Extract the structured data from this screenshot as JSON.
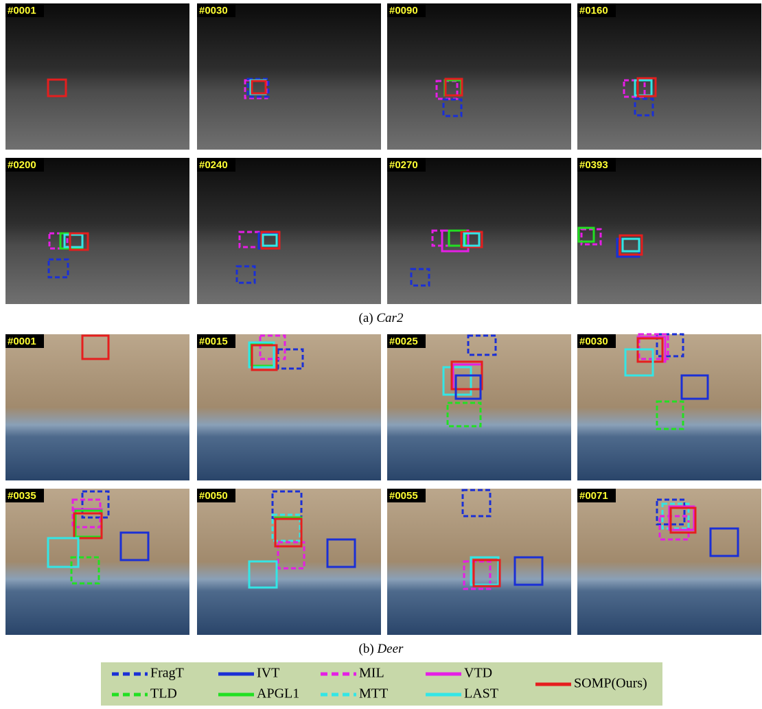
{
  "panels": [
    {
      "caption_label": "(a)",
      "caption_name": "Car2",
      "frames": [
        "#0001",
        "#0030",
        "#0090",
        "#0160",
        "#0200",
        "#0240",
        "#0270",
        "#0393"
      ]
    },
    {
      "caption_label": "(b)",
      "caption_name": "Deer",
      "frames": [
        "#0001",
        "#0015",
        "#0025",
        "#0030",
        "#0035",
        "#0050",
        "#0055",
        "#0071"
      ]
    }
  ],
  "legend": [
    {
      "name": "FragT",
      "color": "#1a2fd6",
      "dashed": true
    },
    {
      "name": "TLD",
      "color": "#22e022",
      "dashed": true
    },
    {
      "name": "IVT",
      "color": "#1a2fd6",
      "dashed": false
    },
    {
      "name": "APGL1",
      "color": "#22e022",
      "dashed": false
    },
    {
      "name": "MIL",
      "color": "#e51ee5",
      "dashed": true
    },
    {
      "name": "MTT",
      "color": "#33e6e6",
      "dashed": true
    },
    {
      "name": "VTD",
      "color": "#e51ee5",
      "dashed": false
    },
    {
      "name": "LAST",
      "color": "#33e6e6",
      "dashed": false
    },
    {
      "name": "SOMP(Ours)",
      "color": "#e51e1e",
      "dashed": false
    }
  ]
}
